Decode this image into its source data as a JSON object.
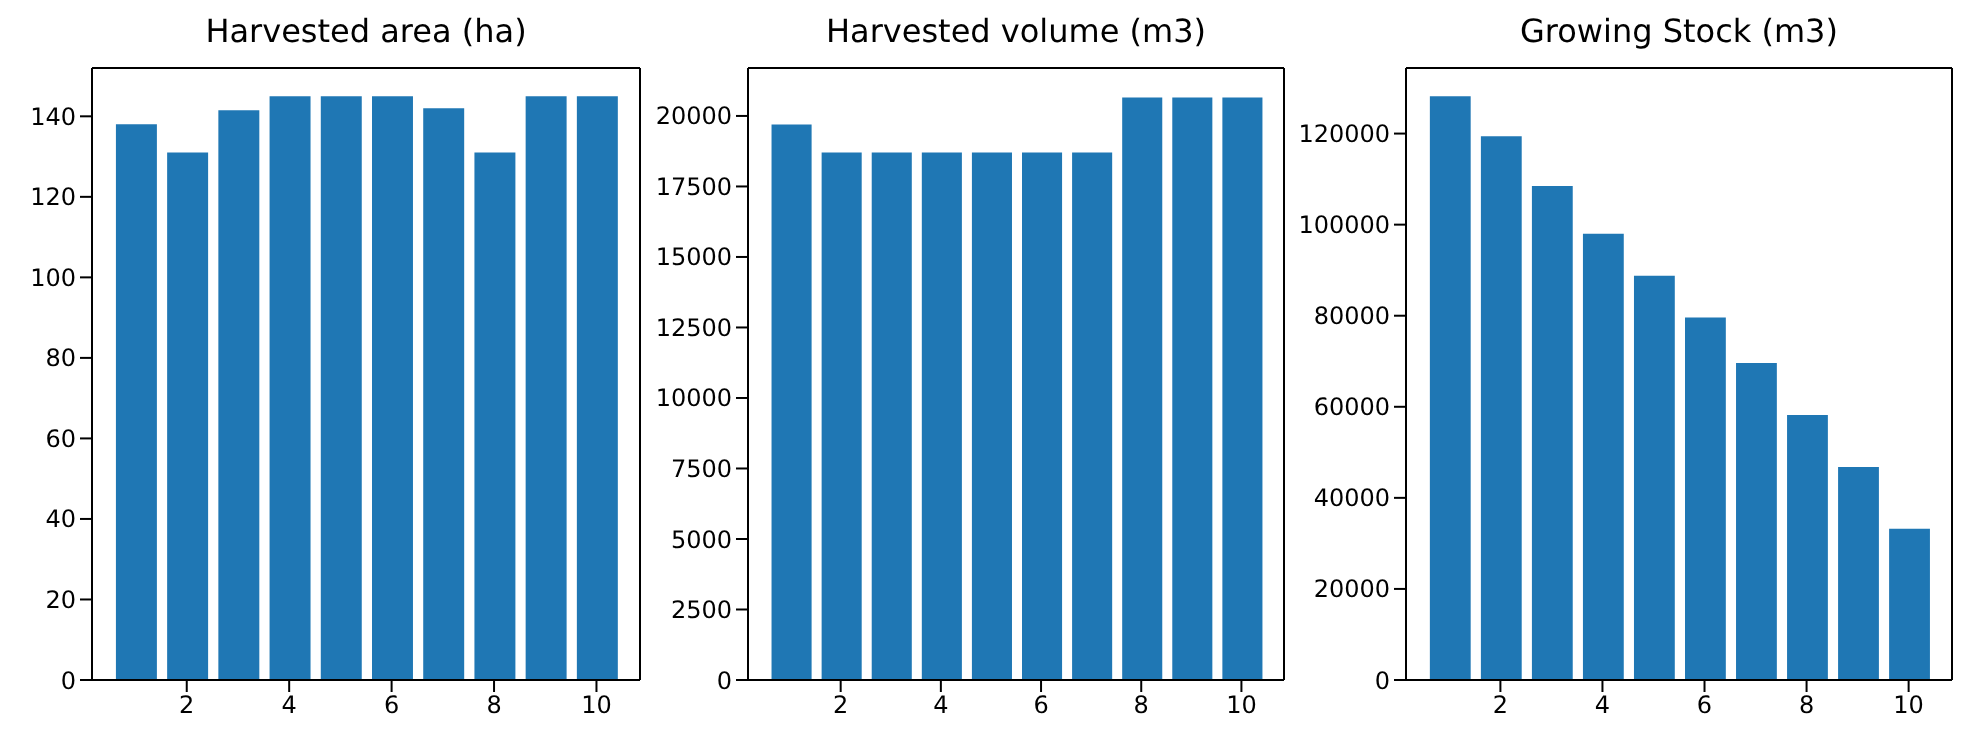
{
  "chart_data": [
    {
      "type": "bar",
      "title": "Harvested area (ha)",
      "x": [
        1,
        2,
        3,
        4,
        5,
        6,
        7,
        8,
        9,
        10
      ],
      "values": [
        138,
        131,
        141.5,
        145,
        145,
        145,
        142,
        131,
        145,
        145
      ],
      "color": "#1f77b4",
      "xlim": [
        0.15,
        10.85
      ],
      "xticks": [
        2,
        4,
        6,
        8,
        10
      ],
      "ylim": [
        0,
        152
      ],
      "yticks": [
        0,
        20,
        40,
        60,
        80,
        100,
        120,
        140
      ]
    },
    {
      "type": "bar",
      "title": "Harvested volume (m3)",
      "x": [
        1,
        2,
        3,
        4,
        5,
        6,
        7,
        8,
        9,
        10
      ],
      "values": [
        19700,
        18700,
        18700,
        18700,
        18700,
        18700,
        18700,
        20650,
        20650,
        20650
      ],
      "color": "#1f77b4",
      "xlim": [
        0.15,
        10.85
      ],
      "xticks": [
        2,
        4,
        6,
        8,
        10
      ],
      "ylim": [
        0,
        21700
      ],
      "yticks": [
        0,
        2500,
        5000,
        7500,
        10000,
        12500,
        15000,
        17500,
        20000
      ]
    },
    {
      "type": "bar",
      "title": "Growing Stock (m3)",
      "x": [
        1,
        2,
        3,
        4,
        5,
        6,
        7,
        8,
        9,
        10
      ],
      "values": [
        128200,
        119400,
        108500,
        98000,
        88800,
        79600,
        69600,
        58200,
        46800,
        33200
      ],
      "color": "#1f77b4",
      "xlim": [
        0.15,
        10.85
      ],
      "xticks": [
        2,
        4,
        6,
        8,
        10
      ],
      "ylim": [
        0,
        134400
      ],
      "yticks": [
        0,
        20000,
        40000,
        60000,
        80000,
        100000,
        120000
      ]
    }
  ]
}
